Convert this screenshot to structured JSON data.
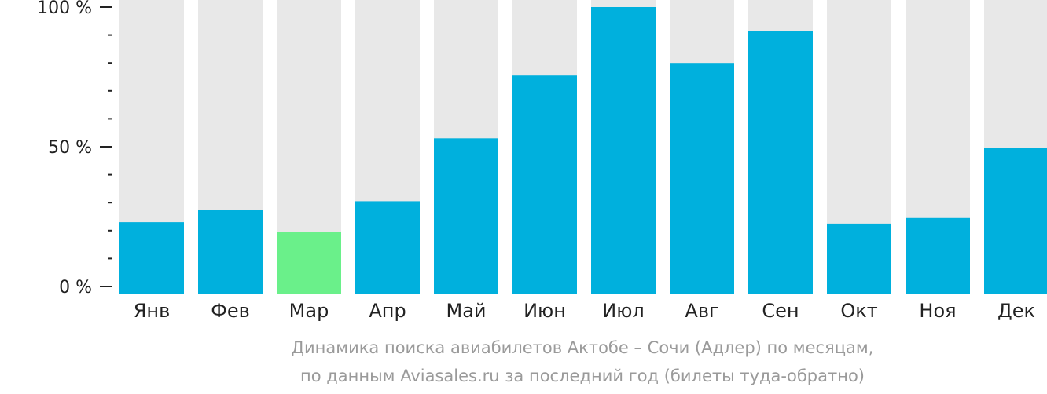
{
  "chart_data": {
    "type": "bar",
    "categories": [
      "Янв",
      "Фев",
      "Мар",
      "Апр",
      "Май",
      "Июн",
      "Июл",
      "Авг",
      "Сен",
      "Окт",
      "Ноя",
      "Дек"
    ],
    "values": [
      23,
      27.5,
      19.5,
      30.5,
      53,
      75.5,
      100,
      80,
      91.5,
      22.5,
      24.5,
      49.5
    ],
    "unit": "%",
    "ylim": [
      0,
      100
    ],
    "yticks": [
      "0 %",
      "50 %",
      "100 %"
    ],
    "background_bar_value": 100,
    "highlight_index": 2,
    "colors": {
      "bar": "#00b0dd",
      "highlight": "#6af08a",
      "background_bar": "#e8e8e8",
      "axis": "#222222"
    },
    "caption_line1": "Динамика поиска авиабилетов Актобе – Сочи (Адлер) по месяцам,",
    "caption_line2": "по данным Aviasales.ru за последний год (билеты туда-обратно)"
  }
}
